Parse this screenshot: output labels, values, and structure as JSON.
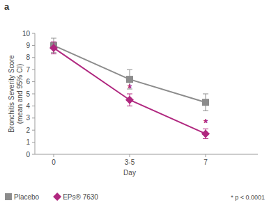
{
  "chart_data": {
    "type": "line",
    "panel_label": "a",
    "ylabel": [
      "Bronchitis Severity Score",
      "(mean and 95% CI)"
    ],
    "xlabel": "Day",
    "categories": [
      "0",
      "3-5",
      "7"
    ],
    "series": [
      {
        "name": "Placebo",
        "color": "#8c8c8c",
        "marker": "square",
        "line_style": "solid",
        "values": [
          9.0,
          6.2,
          4.3
        ],
        "errors": [
          0.6,
          0.8,
          0.7
        ],
        "significance": [
          null,
          null,
          null
        ]
      },
      {
        "name": "EPs® 7630",
        "color": "#b0277f",
        "marker": "diamond",
        "line_style": "solid",
        "values": [
          8.8,
          4.5,
          1.7
        ],
        "errors": [
          0.5,
          0.5,
          0.4
        ],
        "significance": [
          null,
          "*",
          "*"
        ]
      }
    ],
    "footnote": "* p < 0.0001",
    "ylim": [
      0,
      10
    ],
    "yticks": [
      0,
      1,
      2,
      3,
      4,
      5,
      6,
      7,
      8,
      9,
      10
    ],
    "grid": false,
    "legend": "bottom"
  }
}
